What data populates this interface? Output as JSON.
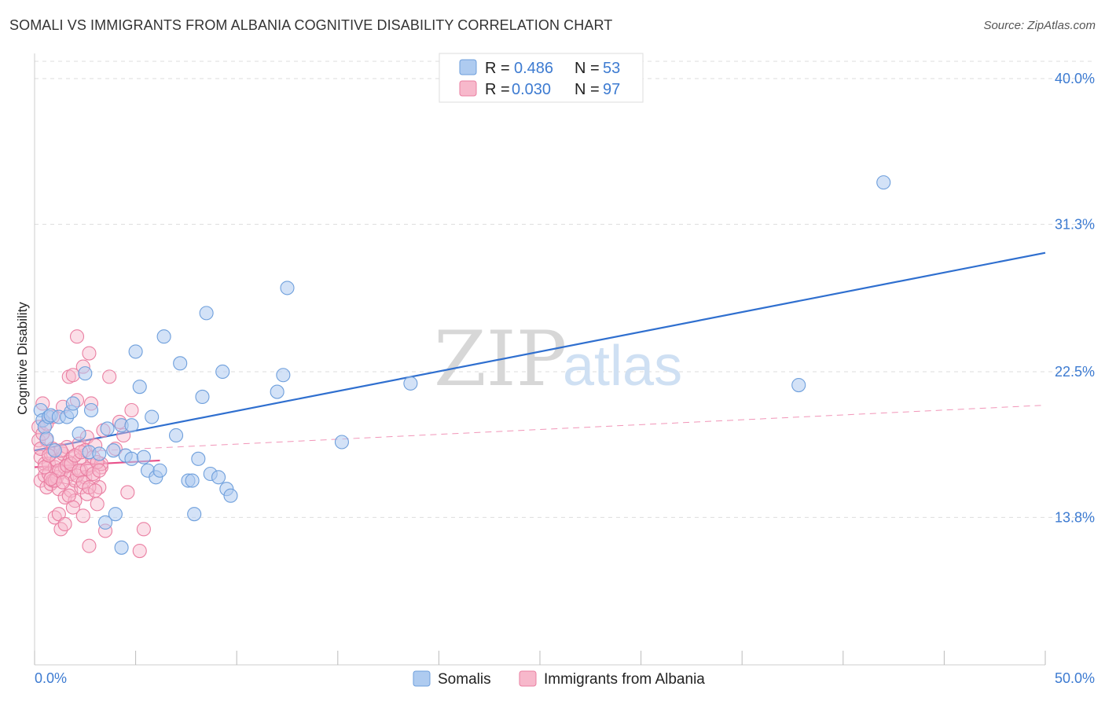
{
  "title": "SOMALI VS IMMIGRANTS FROM ALBANIA COGNITIVE DISABILITY CORRELATION CHART",
  "source": "Source: ZipAtlas.com",
  "watermark": {
    "zip": "ZIP",
    "atlas": "atlas"
  },
  "legend_box": {
    "rows": [
      {
        "r_label": "R =",
        "r_value": "0.486",
        "n_label": "N =",
        "n_value": "53"
      },
      {
        "r_label": "R =",
        "r_value": "0.030",
        "n_label": "N =",
        "n_value": "97"
      }
    ]
  },
  "colors": {
    "somali_fill": "#aecbf0",
    "somali_stroke": "#6e9fdc",
    "somali_line": "#2f6fcf",
    "albania_fill": "#f7b8cb",
    "albania_stroke": "#ea7fa2",
    "albania_line": "#e8508a",
    "tick_text": "#3d7bd1",
    "grid": "#dddddd"
  },
  "chart_data": {
    "type": "scatter",
    "title": "SOMALI VS IMMIGRANTS FROM ALBANIA COGNITIVE DISABILITY CORRELATION CHART",
    "xlabel": "",
    "ylabel": "Cognitive Disability",
    "xlim": [
      0,
      50
    ],
    "ylim": [
      5,
      41.5
    ],
    "x_tick_labels": [
      "0.0%",
      "50.0%"
    ],
    "y_ticks": [
      13.8,
      22.5,
      31.3,
      40.0
    ],
    "y_tick_labels": [
      "13.8%",
      "22.5%",
      "31.3%",
      "40.0%"
    ],
    "grid": true,
    "legend_position": "top-center and bottom",
    "series": [
      {
        "name": "Somalis",
        "r": 0.486,
        "n": 53,
        "trend": {
          "x": [
            0,
            50
          ],
          "y": [
            17.8,
            29.6
          ]
        },
        "points": [
          [
            0.3,
            20.2
          ],
          [
            0.4,
            19.6
          ],
          [
            0.5,
            19.2
          ],
          [
            0.6,
            18.5
          ],
          [
            0.7,
            19.8
          ],
          [
            0.8,
            19.9
          ],
          [
            1.0,
            17.8
          ],
          [
            1.2,
            19.8
          ],
          [
            1.6,
            19.8
          ],
          [
            1.8,
            20.1
          ],
          [
            1.9,
            20.6
          ],
          [
            2.2,
            18.8
          ],
          [
            2.5,
            22.4
          ],
          [
            2.7,
            17.7
          ],
          [
            2.8,
            20.2
          ],
          [
            3.2,
            17.6
          ],
          [
            3.6,
            19.1
          ],
          [
            3.9,
            17.8
          ],
          [
            4.0,
            14.0
          ],
          [
            4.3,
            19.3
          ],
          [
            4.5,
            17.5
          ],
          [
            4.8,
            19.3
          ],
          [
            4.3,
            12.0
          ],
          [
            3.5,
            13.5
          ],
          [
            4.8,
            17.3
          ],
          [
            5.0,
            23.7
          ],
          [
            5.2,
            21.6
          ],
          [
            5.4,
            17.4
          ],
          [
            5.6,
            16.6
          ],
          [
            5.8,
            19.8
          ],
          [
            6.0,
            16.2
          ],
          [
            6.2,
            16.6
          ],
          [
            6.4,
            24.6
          ],
          [
            7.0,
            18.7
          ],
          [
            7.2,
            23.0
          ],
          [
            7.6,
            16.0
          ],
          [
            7.8,
            16.0
          ],
          [
            7.9,
            14.0
          ],
          [
            8.1,
            17.3
          ],
          [
            8.3,
            21.0
          ],
          [
            8.5,
            26.0
          ],
          [
            8.7,
            16.4
          ],
          [
            9.1,
            16.2
          ],
          [
            9.3,
            22.5
          ],
          [
            9.5,
            15.5
          ],
          [
            9.7,
            15.1
          ],
          [
            12.0,
            21.3
          ],
          [
            12.3,
            22.3
          ],
          [
            12.5,
            27.5
          ],
          [
            15.2,
            18.3
          ],
          [
            18.6,
            21.8
          ],
          [
            37.8,
            21.7
          ],
          [
            42.0,
            33.8
          ]
        ]
      },
      {
        "name": "Immigrants from Albania",
        "r": 0.03,
        "n": 97,
        "trend": {
          "x": [
            0,
            6.2
          ],
          "y": [
            16.8,
            17.2
          ]
        },
        "trend_extended": {
          "x": [
            0,
            50
          ],
          "y": [
            17.6,
            20.5
          ]
        },
        "points": [
          [
            0.2,
            19.2
          ],
          [
            0.2,
            18.4
          ],
          [
            0.3,
            17.4
          ],
          [
            0.3,
            16.0
          ],
          [
            0.4,
            20.6
          ],
          [
            0.5,
            17.0
          ],
          [
            0.5,
            16.3
          ],
          [
            0.6,
            15.6
          ],
          [
            0.6,
            18.4
          ],
          [
            0.7,
            17.0
          ],
          [
            0.7,
            16.4
          ],
          [
            0.8,
            15.8
          ],
          [
            0.8,
            17.6
          ],
          [
            0.9,
            16.0
          ],
          [
            0.9,
            19.8
          ],
          [
            1.0,
            16.8
          ],
          [
            1.0,
            13.8
          ],
          [
            1.1,
            17.2
          ],
          [
            1.1,
            16.2
          ],
          [
            1.2,
            15.5
          ],
          [
            1.2,
            14.0
          ],
          [
            1.3,
            16.5
          ],
          [
            1.3,
            13.1
          ],
          [
            1.4,
            17.6
          ],
          [
            1.4,
            20.4
          ],
          [
            1.5,
            16.8
          ],
          [
            1.5,
            15.0
          ],
          [
            1.5,
            13.4
          ],
          [
            1.6,
            16.2
          ],
          [
            1.6,
            18.0
          ],
          [
            1.7,
            17.1
          ],
          [
            1.7,
            22.2
          ],
          [
            1.8,
            16.4
          ],
          [
            1.8,
            15.4
          ],
          [
            1.9,
            22.3
          ],
          [
            1.9,
            17.4
          ],
          [
            2.0,
            16.0
          ],
          [
            2.0,
            14.8
          ],
          [
            2.1,
            24.6
          ],
          [
            2.1,
            20.8
          ],
          [
            2.2,
            17.2
          ],
          [
            2.2,
            18.2
          ],
          [
            2.3,
            16.6
          ],
          [
            2.3,
            15.6
          ],
          [
            2.4,
            13.9
          ],
          [
            2.4,
            22.8
          ],
          [
            2.5,
            17.8
          ],
          [
            2.5,
            16.2
          ],
          [
            2.6,
            18.6
          ],
          [
            2.6,
            15.2
          ],
          [
            2.7,
            12.1
          ],
          [
            2.7,
            23.6
          ],
          [
            2.8,
            16.9
          ],
          [
            2.8,
            20.6
          ],
          [
            2.9,
            17.4
          ],
          [
            2.9,
            16.2
          ],
          [
            3.0,
            18.1
          ],
          [
            3.1,
            14.6
          ],
          [
            3.2,
            15.6
          ],
          [
            3.3,
            16.8
          ],
          [
            3.3,
            17.0
          ],
          [
            3.4,
            19.0
          ],
          [
            3.5,
            13.0
          ],
          [
            3.7,
            22.2
          ],
          [
            4.0,
            17.9
          ],
          [
            4.2,
            19.5
          ],
          [
            4.4,
            18.7
          ],
          [
            4.6,
            15.3
          ],
          [
            4.8,
            20.2
          ],
          [
            5.2,
            11.8
          ],
          [
            5.4,
            13.1
          ],
          [
            0.4,
            18.8
          ],
          [
            0.6,
            19.4
          ],
          [
            0.9,
            17.9
          ],
          [
            1.0,
            16.0
          ],
          [
            1.2,
            16.6
          ],
          [
            1.3,
            17.8
          ],
          [
            1.4,
            15.9
          ],
          [
            1.6,
            16.9
          ],
          [
            1.7,
            15.1
          ],
          [
            1.8,
            17.0
          ],
          [
            1.9,
            14.4
          ],
          [
            2.0,
            17.5
          ],
          [
            2.1,
            16.3
          ],
          [
            2.2,
            16.6
          ],
          [
            2.3,
            17.7
          ],
          [
            2.4,
            15.9
          ],
          [
            2.6,
            16.7
          ],
          [
            2.7,
            15.6
          ],
          [
            2.9,
            16.4
          ],
          [
            3.0,
            15.4
          ],
          [
            3.1,
            17.1
          ],
          [
            3.2,
            16.6
          ],
          [
            0.3,
            17.9
          ],
          [
            0.5,
            16.8
          ],
          [
            0.7,
            17.5
          ],
          [
            0.8,
            16.1
          ]
        ]
      }
    ]
  },
  "bottom_legend": [
    {
      "label": "Somalis"
    },
    {
      "label": "Immigrants from Albania"
    }
  ]
}
